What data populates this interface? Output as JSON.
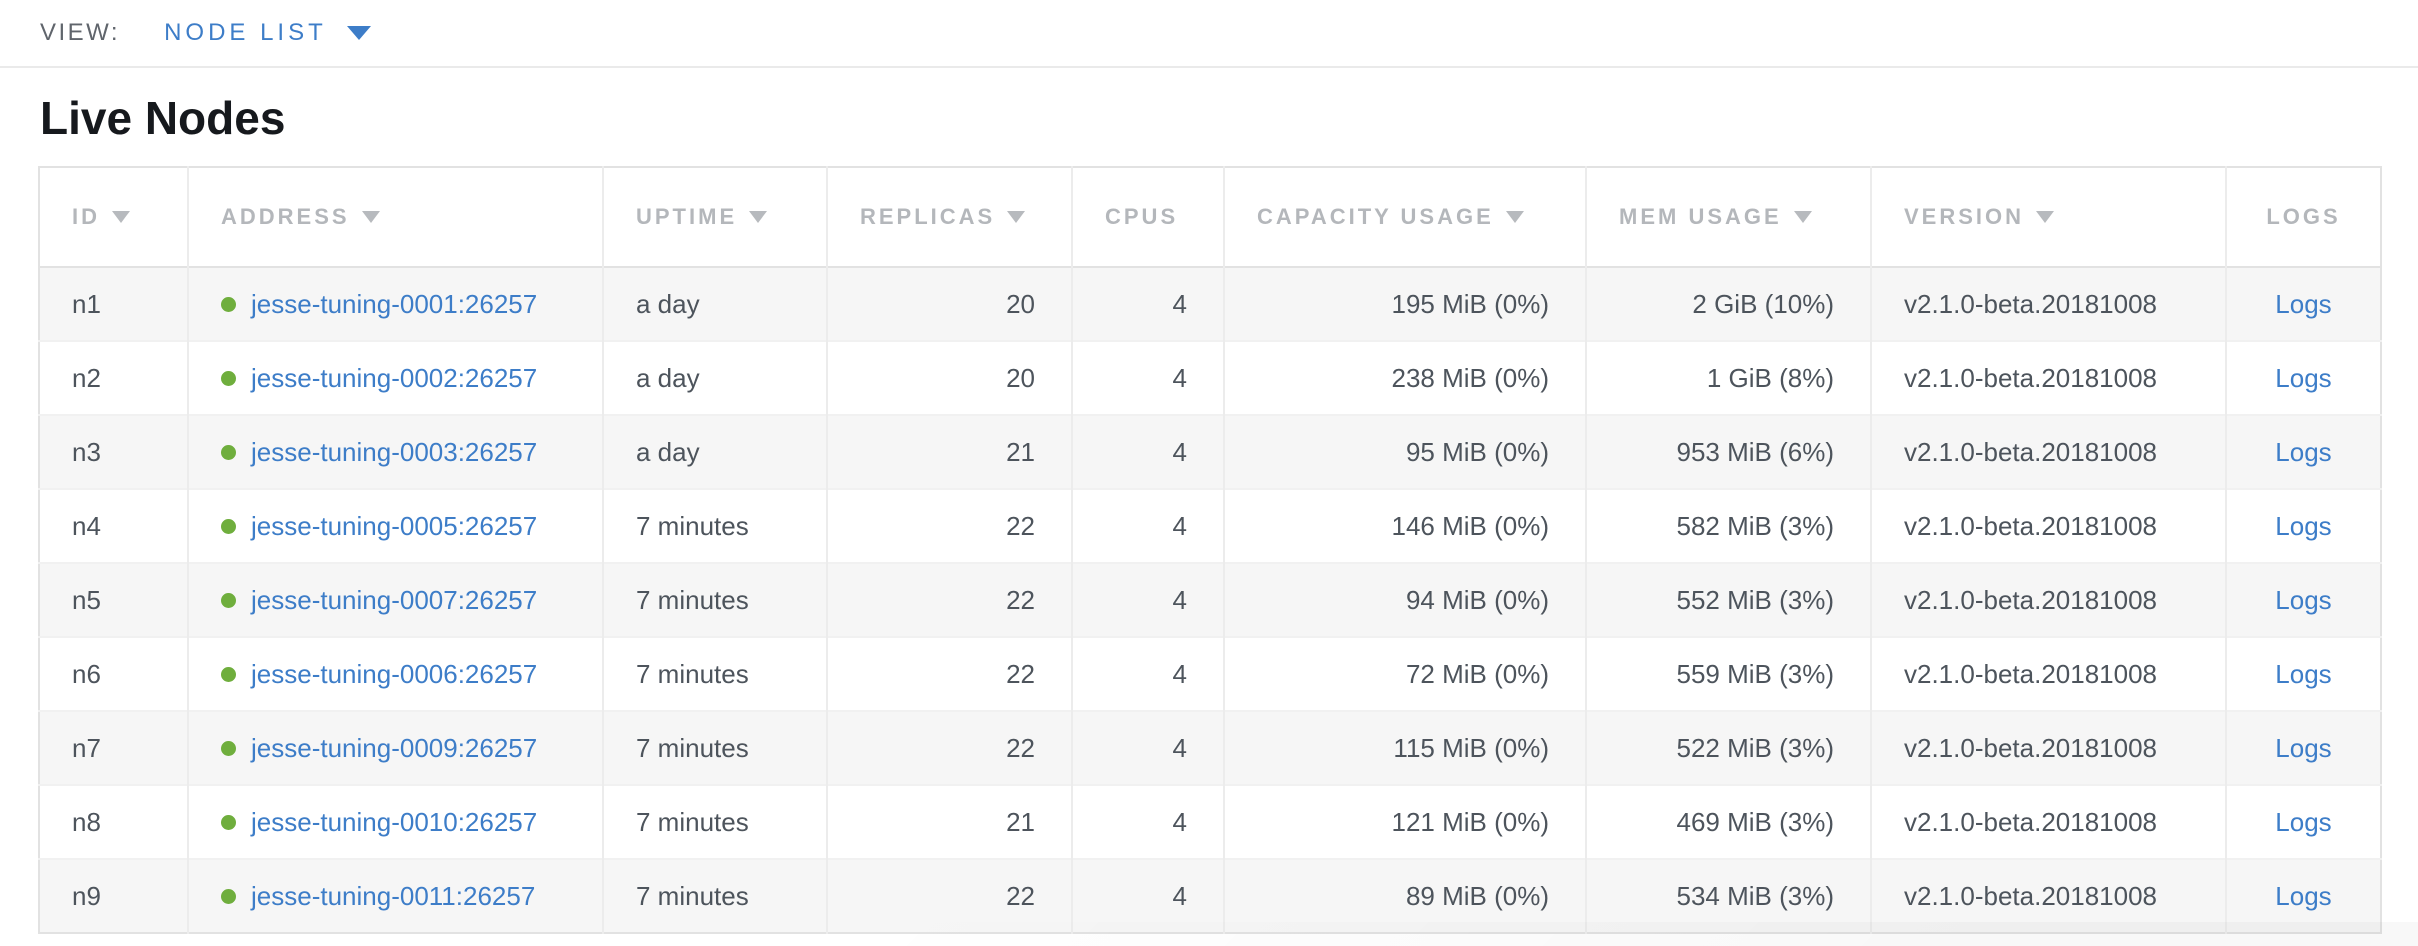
{
  "view_bar": {
    "label": "VIEW:",
    "selected_view": "NODE LIST"
  },
  "page_title": "Live Nodes",
  "table": {
    "columns": [
      {
        "key": "id",
        "label": "ID",
        "sortable": true,
        "align": "left"
      },
      {
        "key": "address",
        "label": "ADDRESS",
        "sortable": true,
        "align": "left"
      },
      {
        "key": "uptime",
        "label": "UPTIME",
        "sortable": true,
        "align": "left"
      },
      {
        "key": "replicas",
        "label": "REPLICAS",
        "sortable": true,
        "align": "right"
      },
      {
        "key": "cpus",
        "label": "CPUS",
        "sortable": false,
        "align": "right"
      },
      {
        "key": "capacity_usage",
        "label": "CAPACITY USAGE",
        "sortable": true,
        "align": "right"
      },
      {
        "key": "mem_usage",
        "label": "MEM USAGE",
        "sortable": true,
        "align": "right"
      },
      {
        "key": "version",
        "label": "VERSION",
        "sortable": true,
        "align": "left"
      },
      {
        "key": "logs",
        "label": "LOGS",
        "sortable": false,
        "align": "center"
      }
    ],
    "rows": [
      {
        "id": "n1",
        "status": "healthy",
        "address": "jesse-tuning-0001:26257",
        "uptime": "a day",
        "replicas": "20",
        "cpus": "4",
        "capacity_usage": "195 MiB (0%)",
        "mem_usage": "2 GiB (10%)",
        "version": "v2.1.0-beta.20181008",
        "logs": "Logs"
      },
      {
        "id": "n2",
        "status": "healthy",
        "address": "jesse-tuning-0002:26257",
        "uptime": "a day",
        "replicas": "20",
        "cpus": "4",
        "capacity_usage": "238 MiB (0%)",
        "mem_usage": "1 GiB (8%)",
        "version": "v2.1.0-beta.20181008",
        "logs": "Logs"
      },
      {
        "id": "n3",
        "status": "healthy",
        "address": "jesse-tuning-0003:26257",
        "uptime": "a day",
        "replicas": "21",
        "cpus": "4",
        "capacity_usage": "95 MiB (0%)",
        "mem_usage": "953 MiB (6%)",
        "version": "v2.1.0-beta.20181008",
        "logs": "Logs"
      },
      {
        "id": "n4",
        "status": "healthy",
        "address": "jesse-tuning-0005:26257",
        "uptime": "7 minutes",
        "replicas": "22",
        "cpus": "4",
        "capacity_usage": "146 MiB (0%)",
        "mem_usage": "582 MiB (3%)",
        "version": "v2.1.0-beta.20181008",
        "logs": "Logs"
      },
      {
        "id": "n5",
        "status": "healthy",
        "address": "jesse-tuning-0007:26257",
        "uptime": "7 minutes",
        "replicas": "22",
        "cpus": "4",
        "capacity_usage": "94 MiB (0%)",
        "mem_usage": "552 MiB (3%)",
        "version": "v2.1.0-beta.20181008",
        "logs": "Logs"
      },
      {
        "id": "n6",
        "status": "healthy",
        "address": "jesse-tuning-0006:26257",
        "uptime": "7 minutes",
        "replicas": "22",
        "cpus": "4",
        "capacity_usage": "72 MiB (0%)",
        "mem_usage": "559 MiB (3%)",
        "version": "v2.1.0-beta.20181008",
        "logs": "Logs"
      },
      {
        "id": "n7",
        "status": "healthy",
        "address": "jesse-tuning-0009:26257",
        "uptime": "7 minutes",
        "replicas": "22",
        "cpus": "4",
        "capacity_usage": "115 MiB (0%)",
        "mem_usage": "522 MiB (3%)",
        "version": "v2.1.0-beta.20181008",
        "logs": "Logs"
      },
      {
        "id": "n8",
        "status": "healthy",
        "address": "jesse-tuning-0010:26257",
        "uptime": "7 minutes",
        "replicas": "21",
        "cpus": "4",
        "capacity_usage": "121 MiB (0%)",
        "mem_usage": "469 MiB (3%)",
        "version": "v2.1.0-beta.20181008",
        "logs": "Logs"
      },
      {
        "id": "n9",
        "status": "healthy",
        "address": "jesse-tuning-0011:26257",
        "uptime": "7 minutes",
        "replicas": "22",
        "cpus": "4",
        "capacity_usage": "89 MiB (0%)",
        "mem_usage": "534 MiB (3%)",
        "version": "v2.1.0-beta.20181008",
        "logs": "Logs"
      }
    ]
  },
  "colors": {
    "link_blue": "#3d7dc8",
    "health_green": "#6fae3d",
    "header_gray": "#b4b7bb",
    "cell_text": "#4d545c",
    "row_stripe": "#f6f6f6"
  }
}
